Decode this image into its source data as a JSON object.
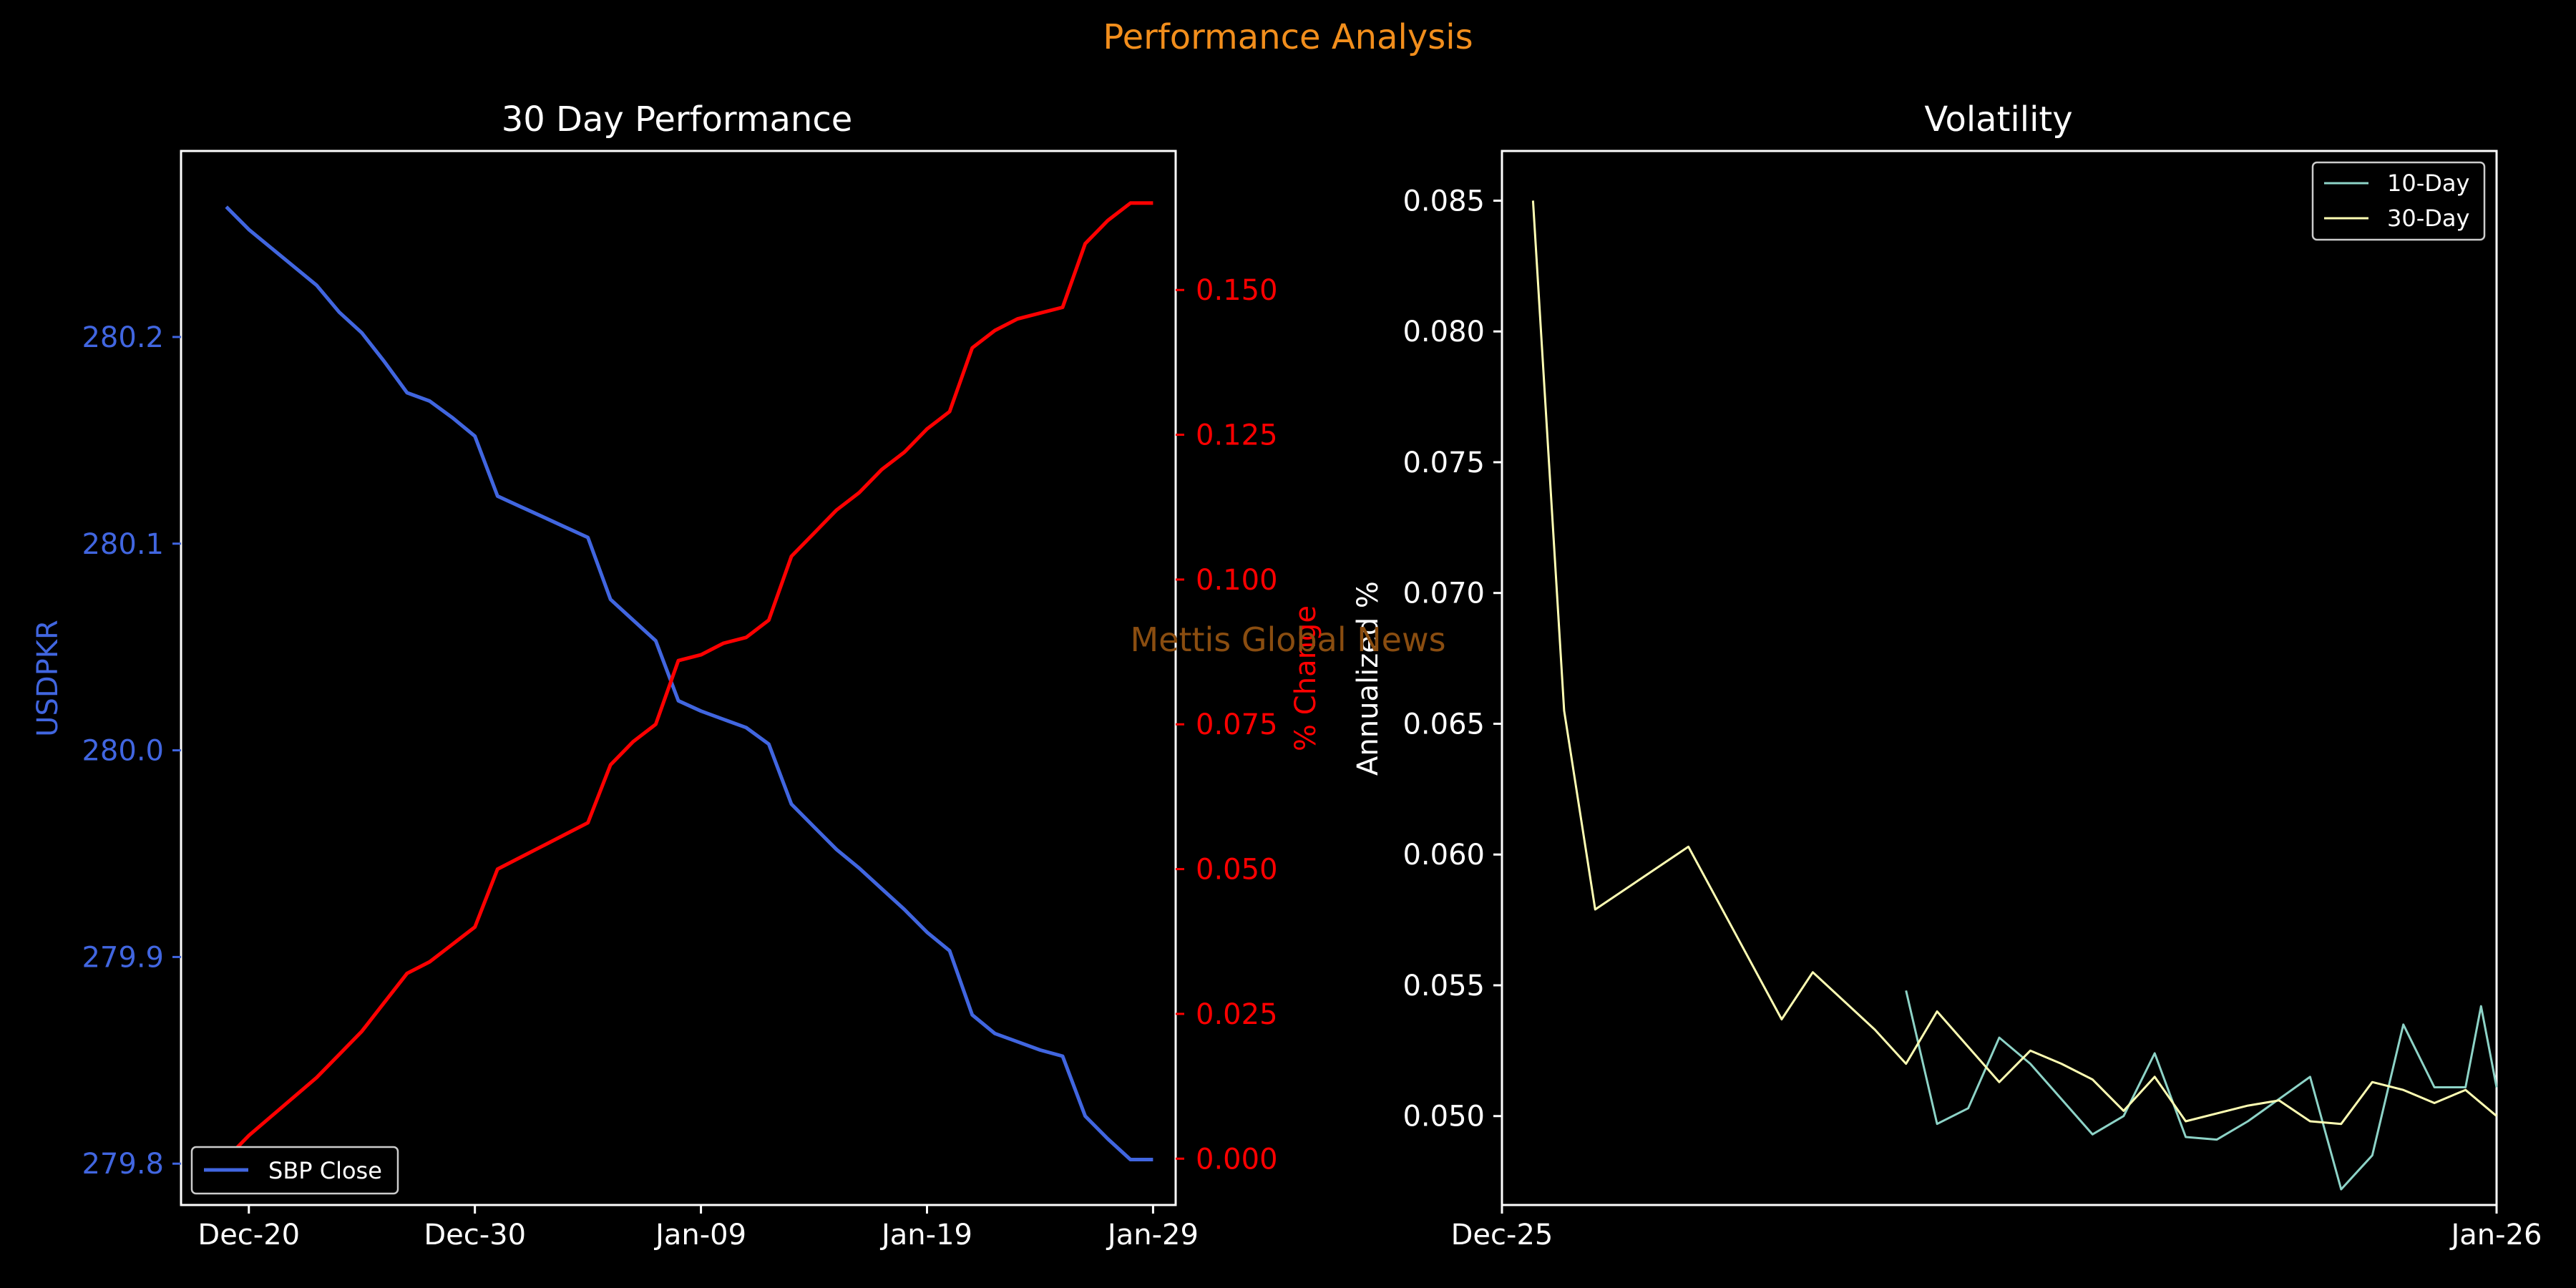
{
  "figure": {
    "title": "Performance Analysis",
    "watermark": "Mettis Global News",
    "colors": {
      "background": "#000000",
      "title": "#f28e1c",
      "watermark": "#8a4d10",
      "foreground": "#ffffff",
      "close_line": "#4166e0",
      "pct_line": "#ff0000",
      "vol10": "#8dd3c7",
      "vol30": "#ffffb3"
    }
  },
  "chart_data": [
    {
      "type": "line",
      "title": "30 Day Performance",
      "ylabel": "USDPKR",
      "y2label": "% Change",
      "xlim": [
        "2024-12-17",
        "2025-01-30"
      ],
      "ylim": [
        279.78,
        280.29
      ],
      "y2lim": [
        -0.008,
        0.174
      ],
      "xticks": [
        "Dec-20",
        "Dec-30",
        "Jan-09",
        "Jan-19",
        "Jan-29"
      ],
      "xtick_dates": [
        "2024-12-20",
        "2024-12-30",
        "2025-01-09",
        "2025-01-19",
        "2025-01-29"
      ],
      "yticks": [
        279.8,
        279.9,
        280.0,
        280.1,
        280.2
      ],
      "y2ticks": [
        0.0,
        0.025,
        0.05,
        0.075,
        0.1,
        0.125,
        0.15
      ],
      "legend": {
        "entries": [
          "SBP Close"
        ],
        "placement": "lower-left"
      },
      "x": [
        "2024-12-19",
        "2024-12-20",
        "2024-12-23",
        "2024-12-24",
        "2024-12-25",
        "2024-12-26",
        "2024-12-27",
        "2024-12-28",
        "2024-12-29",
        "2024-12-30",
        "2024-12-31",
        "2025-01-01",
        "2025-01-02",
        "2025-01-03",
        "2025-01-04",
        "2025-01-05",
        "2025-01-06",
        "2025-01-07",
        "2025-01-08",
        "2025-01-09",
        "2025-01-10",
        "2025-01-11",
        "2025-01-12",
        "2025-01-13",
        "2025-01-14",
        "2025-01-15",
        "2025-01-16",
        "2025-01-17",
        "2025-01-18",
        "2025-01-19",
        "2025-01-20",
        "2025-01-21",
        "2025-01-22",
        "2025-01-23",
        "2025-01-24",
        "2025-01-25",
        "2025-01-26",
        "2025-01-27",
        "2025-01-28",
        "2025-01-29"
      ],
      "series": [
        {
          "name": "SBP Close",
          "axis": "left",
          "values": [
            280.263,
            280.252,
            280.225,
            280.212,
            280.202,
            280.188,
            280.173,
            280.169,
            280.161,
            280.152,
            280.123,
            280.118,
            280.113,
            280.108,
            280.103,
            280.073,
            280.063,
            280.053,
            280.024,
            280.019,
            280.015,
            280.011,
            280.003,
            279.974,
            279.963,
            279.952,
            279.943,
            279.933,
            279.923,
            279.912,
            279.903,
            279.872,
            279.863,
            279.859,
            279.855,
            279.852,
            279.823,
            279.812,
            279.802,
            279.802
          ]
        },
        {
          "axis": "right",
          "values": [
            0.0,
            0.004,
            0.014,
            0.018,
            0.022,
            0.027,
            0.032,
            0.034,
            0.037,
            0.04,
            0.05,
            0.052,
            0.054,
            0.056,
            0.058,
            0.068,
            0.072,
            0.075,
            0.086,
            0.087,
            0.089,
            0.09,
            0.093,
            0.104,
            0.108,
            0.112,
            0.115,
            0.119,
            0.122,
            0.126,
            0.129,
            0.14,
            0.143,
            0.145,
            0.146,
            0.147,
            0.158,
            0.162,
            0.165,
            0.165
          ]
        }
      ]
    },
    {
      "type": "line",
      "title": "Volatility",
      "ylabel": "Annualized %",
      "xlim": [
        "2024-12-25",
        "2025-01-26"
      ],
      "ylim": [
        0.0466,
        0.0869
      ],
      "xticks": [
        "Dec-25",
        "Jan-26"
      ],
      "xtick_dates": [
        "2024-12-25",
        "2025-01-26"
      ],
      "yticks": [
        0.05,
        0.055,
        0.06,
        0.065,
        0.07,
        0.075,
        0.08,
        0.085
      ],
      "legend": {
        "entries": [
          "10-Day",
          "30-Day"
        ],
        "placement": "top-right"
      },
      "series": [
        {
          "name": "10-Day",
          "x": [
            "2025-01-07",
            "2025-01-08",
            "2025-01-09",
            "2025-01-10",
            "2025-01-11",
            "2025-01-13",
            "2025-01-14",
            "2025-01-15",
            "2025-01-16",
            "2025-01-17",
            "2025-01-18",
            "2025-01-20",
            "2025-01-21",
            "2025-01-22",
            "2025-01-23",
            "2025-01-24",
            "2025-01-25",
            "2025-01-25.5",
            "2025-01-26"
          ],
          "values": [
            0.0548,
            0.0497,
            0.0503,
            0.053,
            0.052,
            0.0493,
            0.05,
            0.0524,
            0.0492,
            0.0491,
            0.0498,
            0.0515,
            0.0472,
            0.0485,
            0.0535,
            0.0511,
            0.0511,
            0.0542,
            0.0511
          ]
        },
        {
          "name": "30-Day",
          "x": [],
          "values": []
        }
      ]
    }
  ]
}
